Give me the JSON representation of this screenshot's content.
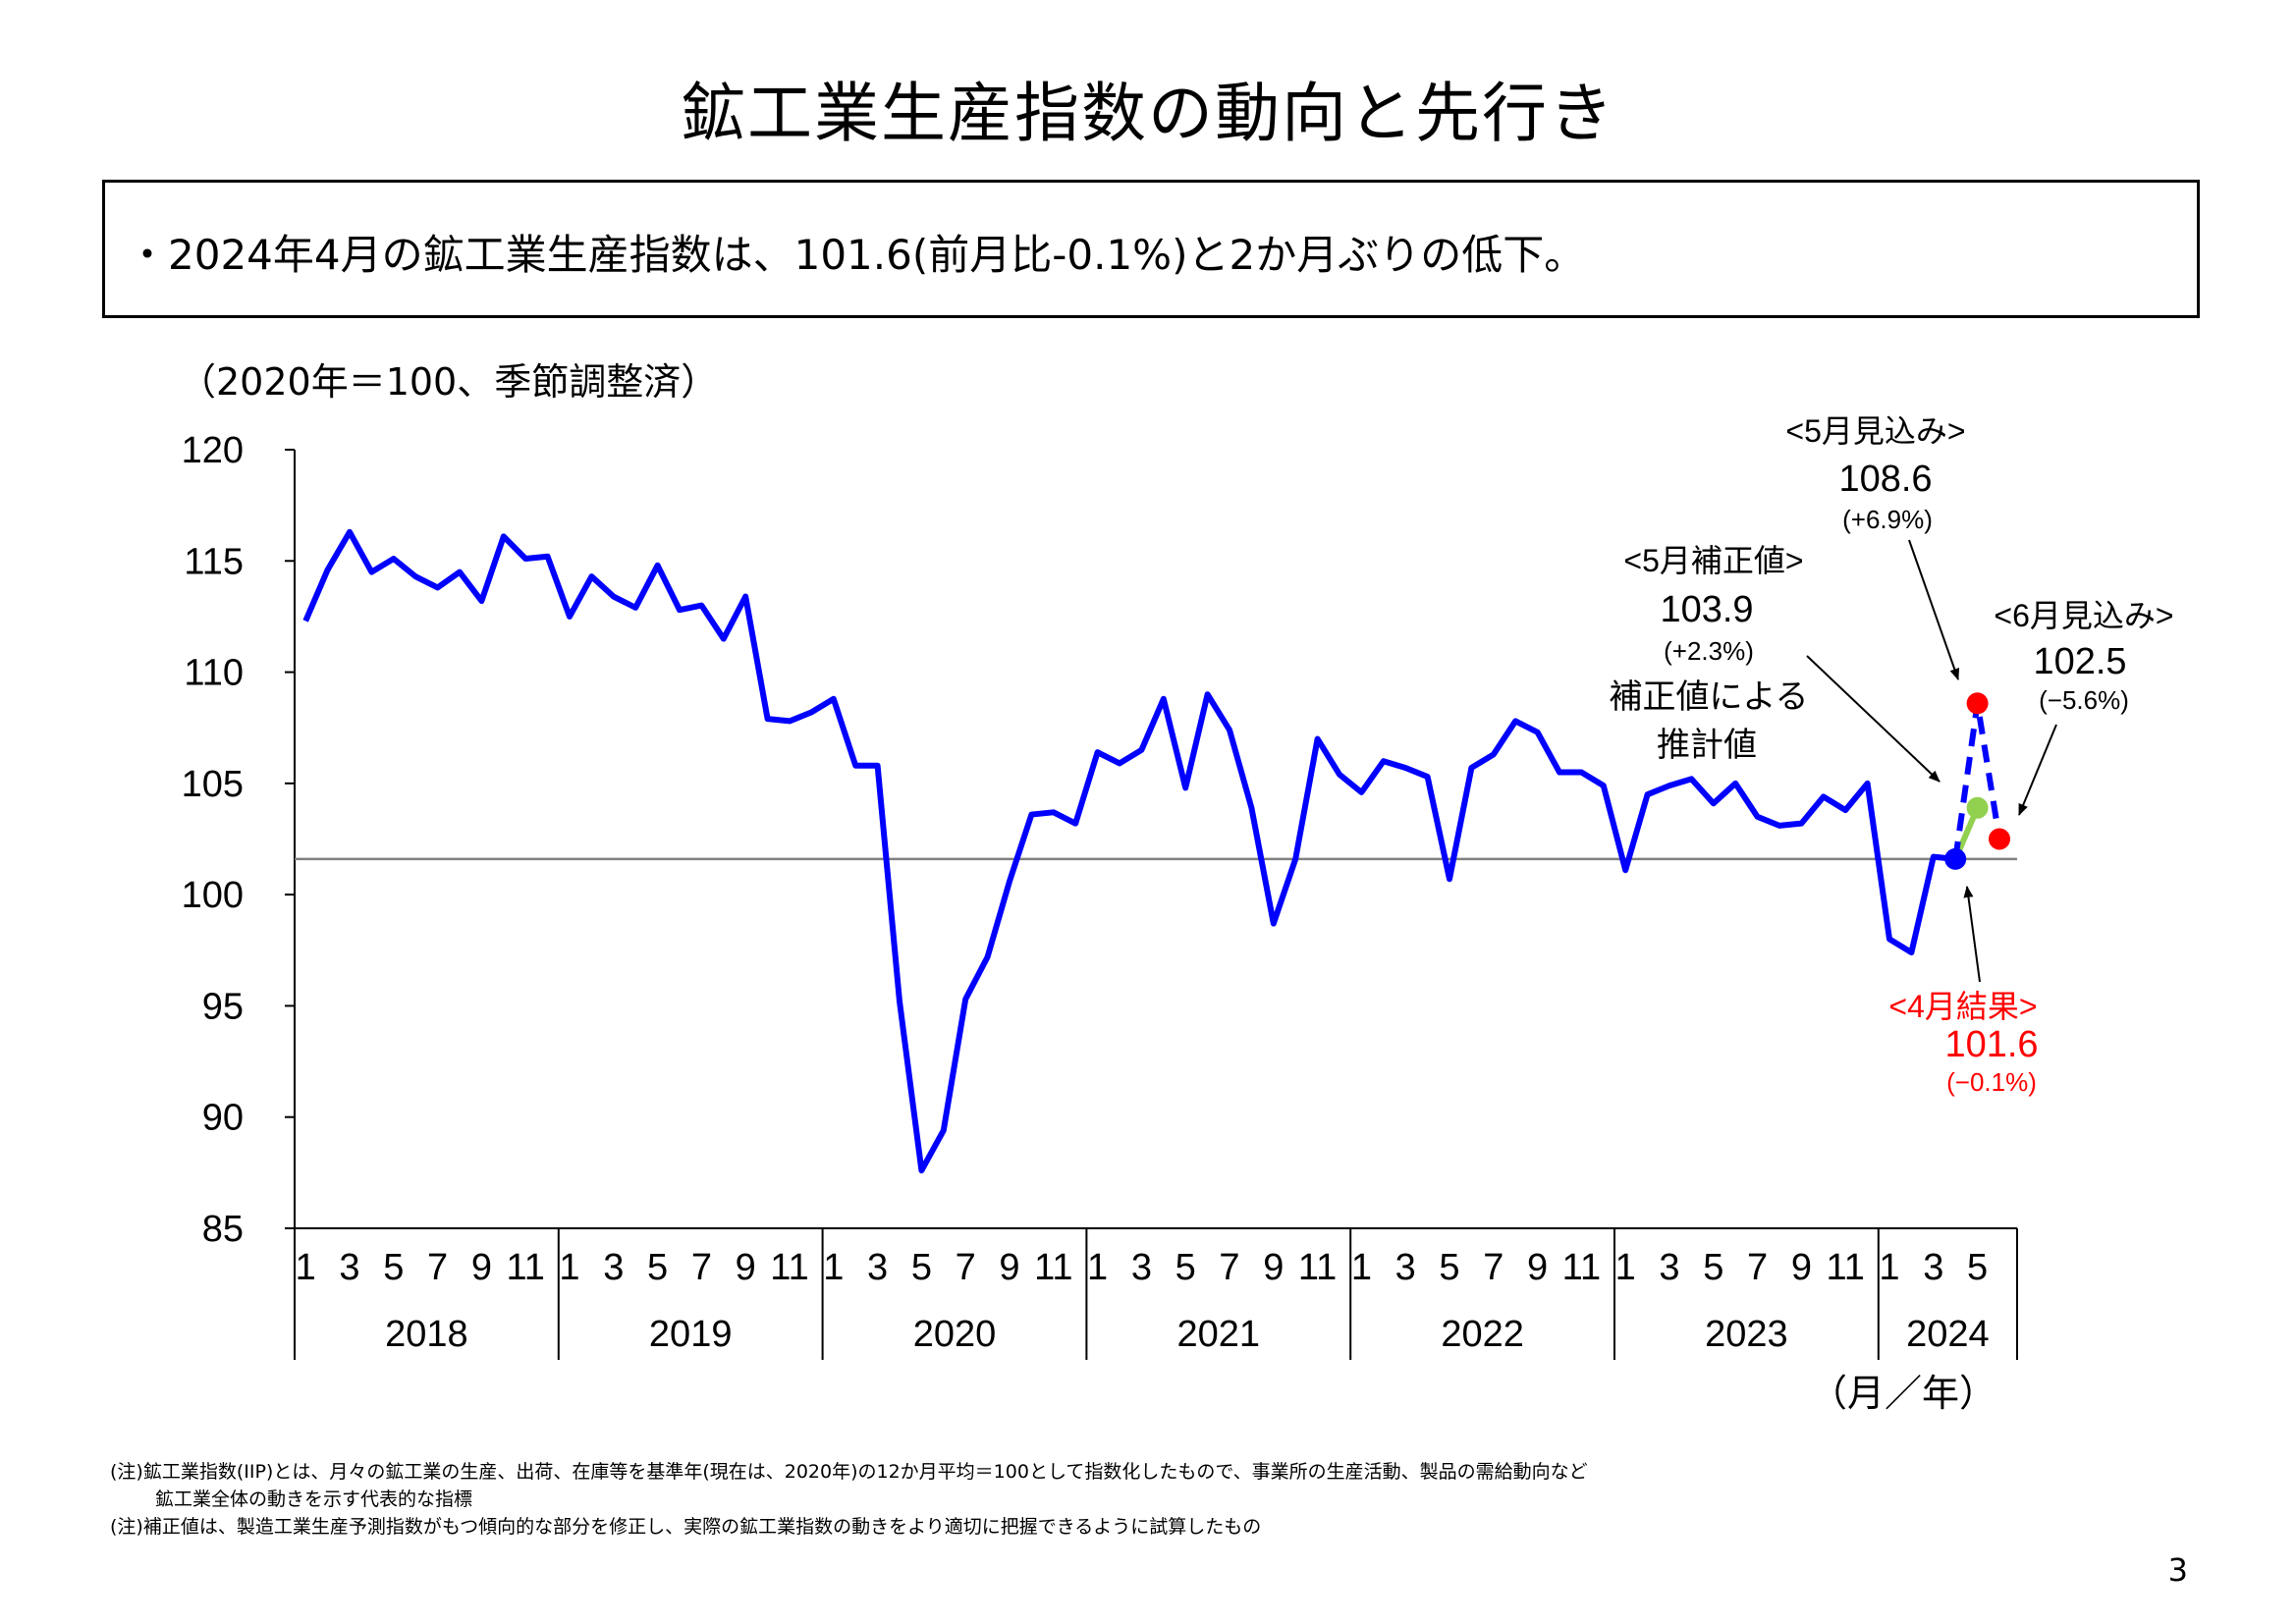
{
  "title": "鉱工業生産指数の動向と先行き",
  "summary": "・2024年4月の鉱工業生産指数は、101.6(前月比-0.1%)と2か月ぶりの低下。",
  "unit_label": "（2020年＝100、季節調整済）",
  "x_unit_label": "（月／年）",
  "annotations": {
    "may_forecast": {
      "label": "<5月見込み>",
      "value": "108.6",
      "change": "(+6.9%)"
    },
    "may_corrected": {
      "label": "<5月補正値>",
      "value": "103.9",
      "change": "(+2.3%)",
      "note_line1": "補正値による",
      "note_line2": "推計値"
    },
    "june_forecast": {
      "label": "<6月見込み>",
      "value": "102.5",
      "change": "(−5.6%)"
    },
    "april_result": {
      "label": "<4月結果>",
      "value": "101.6",
      "change": "(−0.1%)"
    }
  },
  "notes": [
    "(注)鉱工業指数(IIP)とは、月々の鉱工業の生産、出荷、在庫等を基準年(現在は、2020年)の12か月平均＝100として指数化したもので、事業所の生産活動、製品の需給動向など",
    "鉱工業全体の動きを示す代表的な指標",
    "(注)補正値は、製造工業生産予測指数がもつ傾向的な部分を修正し、実際の鉱工業指数の動きをより適切に把握できるように試算したもの"
  ],
  "page_number": "3",
  "colors": {
    "actual": "#0000ff",
    "corrected": "#92d050",
    "forecast": "#ff0000",
    "reference_line": "#808080",
    "result_text": "#ff0000"
  },
  "chart_data": {
    "type": "line",
    "ylim": [
      85,
      120
    ],
    "yticks": [
      85,
      90,
      95,
      100,
      105,
      110,
      115,
      120
    ],
    "month_ticks": [
      "1",
      "3",
      "5",
      "7",
      "9",
      "11"
    ],
    "month_ticks_2024": [
      "1",
      "3",
      "5"
    ],
    "years": [
      "2018",
      "2019",
      "2020",
      "2021",
      "2022",
      "2023",
      "2024"
    ],
    "reference_value": 101.6,
    "series": [
      {
        "values": [
          112.3,
          114.6,
          116.3,
          114.5,
          115.1,
          114.3,
          113.8,
          114.5,
          113.2,
          116.1,
          115.1,
          115.2,
          112.5,
          114.3,
          113.4,
          112.9,
          114.8,
          112.8,
          113.0,
          111.5,
          113.4,
          107.9,
          107.8,
          108.2,
          108.8,
          105.8,
          105.8,
          95.2,
          87.6,
          89.4,
          95.3,
          97.2,
          100.6,
          103.6,
          103.7,
          103.2,
          106.4,
          105.9,
          106.5,
          108.8,
          104.8,
          109.0,
          107.4,
          103.9,
          98.7,
          101.6,
          107.0,
          105.4,
          104.6,
          106.0,
          105.7,
          105.3,
          100.7,
          105.7,
          106.3,
          107.8,
          107.3,
          105.5,
          105.5,
          104.9,
          101.1,
          104.5,
          104.9,
          105.2,
          104.1,
          105.0,
          103.5,
          103.1,
          103.2,
          104.4,
          103.8,
          105.0,
          98.0,
          97.4,
          101.7,
          101.6
        ]
      },
      {
        "from": "2024-4",
        "to": "2024-5",
        "values": [
          101.6,
          103.9
        ]
      },
      {
        "from": "2024-4",
        "to": "2024-6",
        "values": [
          101.6,
          108.6,
          102.5
        ]
      }
    ]
  }
}
